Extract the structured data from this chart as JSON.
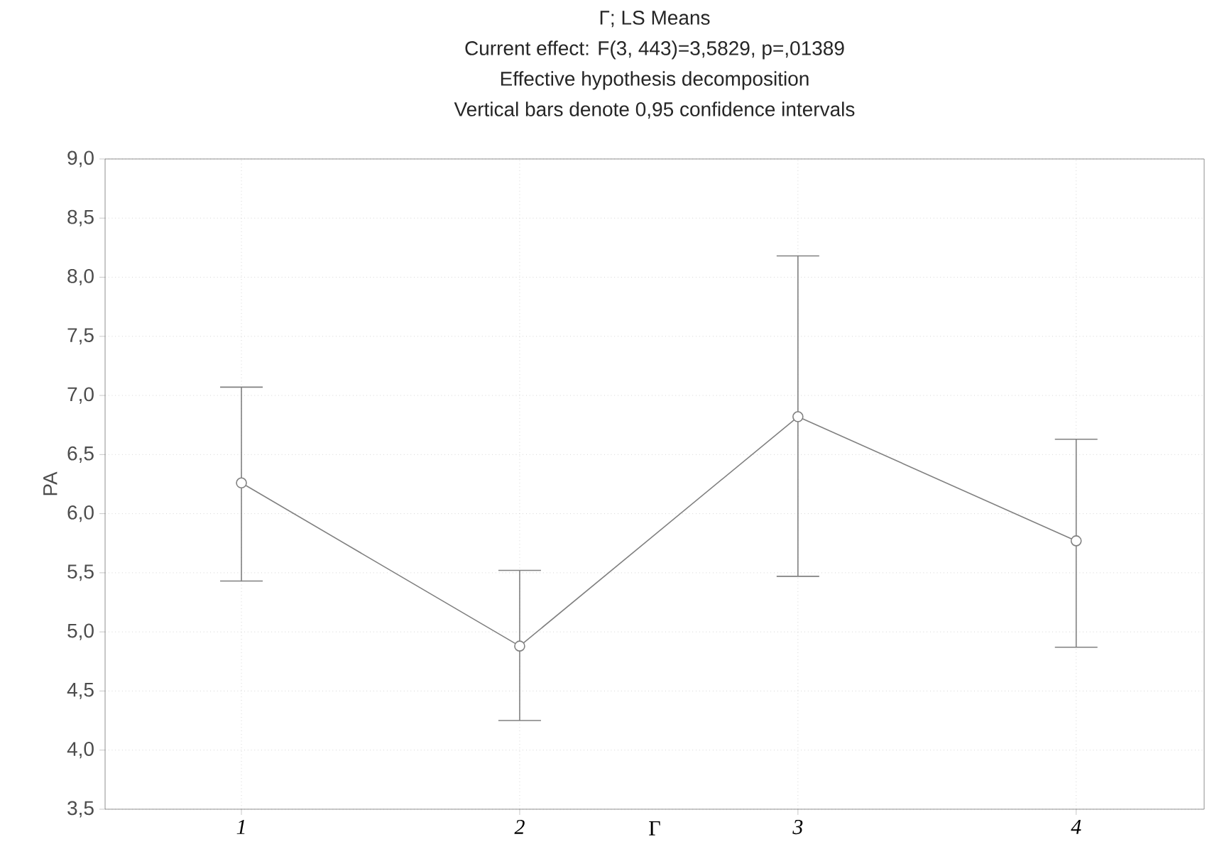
{
  "chart_data": {
    "type": "line",
    "title": "Γ; LS Means",
    "subtitle": "Current effect: F(3, 443)=3,5829, p=,01389",
    "annotations": [
      "Effective hypothesis decomposition",
      "Vertical bars denote 0,95 confidence intervals"
    ],
    "categories": [
      "1",
      "2",
      "3",
      "4"
    ],
    "xlabel": "Γ",
    "ylabel": "PA",
    "values": [
      6.26,
      4.88,
      6.82,
      5.77
    ],
    "errors": [
      [
        5.43,
        7.07
      ],
      [
        4.25,
        5.52
      ],
      [
        5.47,
        8.18
      ],
      [
        4.87,
        6.63
      ]
    ],
    "color": "#808080",
    "marker": "circle",
    "line_style": "solid",
    "grid": true,
    "ylim": [
      3.5,
      9.0
    ],
    "yticks": [
      {
        "value": 3.5,
        "label": "3,5"
      },
      {
        "value": 4.0,
        "label": "4,0"
      },
      {
        "value": 4.5,
        "label": "4,5"
      },
      {
        "value": 5.0,
        "label": "5,0"
      },
      {
        "value": 5.5,
        "label": "5,5"
      },
      {
        "value": 6.0,
        "label": "6,0"
      },
      {
        "value": 6.5,
        "label": "6,5"
      },
      {
        "value": 7.0,
        "label": "7,0"
      },
      {
        "value": 7.5,
        "label": "7,5"
      },
      {
        "value": 8.0,
        "label": "8,0"
      },
      {
        "value": 8.5,
        "label": "8,5"
      },
      {
        "value": 9.0,
        "label": "9,0"
      }
    ]
  }
}
